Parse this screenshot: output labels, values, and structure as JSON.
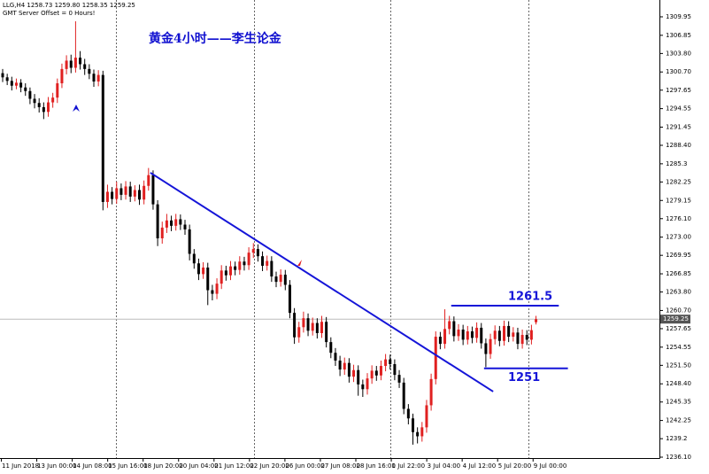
{
  "chart_data": {
    "type": "candlestick",
    "header": "LLG,H4  1258.73 1259.80 1258.35 1259.25",
    "subheader": "GMT Server Offset = 0 Hours!",
    "title": "黄金4小时——李生论金",
    "up_color": "#e02020",
    "down_color": "#000000",
    "open": [
      1300.5,
      1299.8,
      1299.2,
      1298.4,
      1298.9,
      1298.1,
      1297.5,
      1296.2,
      1295.5,
      1294.8,
      1294.0,
      1295.6,
      1296.4,
      1298.8,
      1301.2,
      1302.6,
      1301.4,
      1303.1,
      1302.0,
      1301.2,
      1300.4,
      1299.1,
      1300.2,
      1278.9,
      1280.6,
      1279.4,
      1281.2,
      1280.1,
      1281.5,
      1279.8,
      1280.9,
      1279.3,
      1281.6,
      1283.4,
      1278.5,
      1272.8,
      1274.6,
      1275.8,
      1274.9,
      1276.0,
      1275.1,
      1274.3,
      1270.2,
      1268.6,
      1266.8,
      1267.9,
      1264.1,
      1263.5,
      1265.2,
      1267.4,
      1266.6,
      1268.1,
      1267.5,
      1268.9,
      1268.3,
      1270.4,
      1271.0,
      1269.8,
      1268.2,
      1269.0,
      1266.4,
      1265.5,
      1266.7,
      1265.0,
      1260.3,
      1256.2,
      1257.9,
      1259.4,
      1257.3,
      1258.6,
      1256.9,
      1258.8,
      1255.4,
      1253.6,
      1252.3,
      1250.8,
      1251.9,
      1249.6,
      1250.7,
      1248.3,
      1247.5,
      1249.3,
      1250.6,
      1249.8,
      1251.4,
      1252.5,
      1251.7,
      1249.9,
      1248.6,
      1244.2,
      1242.6,
      1240.3,
      1239.6,
      1241.1,
      1244.8,
      1249.2,
      1256.3,
      1255.1,
      1257.6,
      1258.9,
      1256.4,
      1257.5,
      1255.8,
      1257.2,
      1256.1,
      1257.8,
      1255.2,
      1253.4,
      1255.9,
      1257.3,
      1255.6,
      1258.1,
      1256.3,
      1257.0,
      1255.1,
      1256.6,
      1255.8,
      1258.73
    ],
    "high": [
      1301.2,
      1300.4,
      1299.9,
      1299.6,
      1299.5,
      1298.8,
      1298.1,
      1297.0,
      1296.3,
      1295.6,
      1296.5,
      1297.2,
      1299.6,
      1302.1,
      1303.5,
      1303.6,
      1309.2,
      1304.2,
      1302.9,
      1302.0,
      1301.1,
      1301.0,
      1300.9,
      1281.8,
      1281.4,
      1282.3,
      1282.0,
      1282.4,
      1282.3,
      1281.7,
      1281.8,
      1282.5,
      1284.6,
      1284.2,
      1279.2,
      1275.6,
      1276.9,
      1276.6,
      1276.9,
      1276.8,
      1275.9,
      1275.1,
      1271.0,
      1269.4,
      1268.8,
      1268.7,
      1265.0,
      1266.1,
      1268.3,
      1268.2,
      1269.0,
      1268.9,
      1269.8,
      1269.7,
      1271.3,
      1272.0,
      1271.8,
      1270.6,
      1269.9,
      1269.8,
      1267.2,
      1267.6,
      1267.5,
      1265.8,
      1261.1,
      1258.8,
      1260.5,
      1260.2,
      1259.5,
      1259.4,
      1259.8,
      1259.6,
      1256.2,
      1254.4,
      1253.1,
      1252.8,
      1252.7,
      1251.6,
      1251.5,
      1249.1,
      1250.2,
      1251.5,
      1251.4,
      1252.3,
      1253.4,
      1253.3,
      1252.5,
      1250.7,
      1249.4,
      1245.0,
      1243.4,
      1241.1,
      1242.0,
      1245.7,
      1250.1,
      1257.2,
      1257.1,
      1260.9,
      1259.8,
      1259.7,
      1258.4,
      1258.3,
      1258.1,
      1258.0,
      1258.7,
      1258.6,
      1256.0,
      1256.8,
      1258.2,
      1258.1,
      1259.0,
      1258.9,
      1257.9,
      1257.8,
      1257.5,
      1257.4,
      1258.3,
      1259.8
    ],
    "low": [
      1299.0,
      1298.5,
      1297.6,
      1297.8,
      1297.3,
      1296.7,
      1295.3,
      1294.6,
      1293.9,
      1292.8,
      1293.2,
      1294.7,
      1295.5,
      1298.0,
      1300.3,
      1300.5,
      1300.6,
      1301.1,
      1300.2,
      1299.5,
      1298.2,
      1298.3,
      1277.5,
      1277.9,
      1278.5,
      1278.6,
      1279.2,
      1279.3,
      1278.9,
      1279.0,
      1278.4,
      1278.5,
      1280.8,
      1277.6,
      1271.5,
      1271.9,
      1273.7,
      1274.0,
      1274.1,
      1274.2,
      1273.4,
      1269.1,
      1267.7,
      1265.8,
      1266.0,
      1261.6,
      1262.4,
      1262.6,
      1264.3,
      1265.7,
      1265.8,
      1266.6,
      1266.7,
      1267.4,
      1267.5,
      1269.5,
      1268.9,
      1267.3,
      1267.4,
      1265.5,
      1264.6,
      1264.7,
      1264.1,
      1259.4,
      1255.1,
      1255.3,
      1257.0,
      1256.4,
      1256.5,
      1256.0,
      1256.1,
      1254.5,
      1252.7,
      1251.4,
      1249.7,
      1249.9,
      1248.6,
      1248.7,
      1246.4,
      1246.2,
      1246.6,
      1248.4,
      1248.9,
      1249.0,
      1250.5,
      1250.8,
      1249.0,
      1247.7,
      1243.3,
      1241.6,
      1238.2,
      1238.4,
      1238.7,
      1240.2,
      1243.9,
      1248.3,
      1254.2,
      1254.3,
      1256.7,
      1255.5,
      1255.6,
      1254.9,
      1255.0,
      1255.2,
      1255.3,
      1254.3,
      1251.2,
      1252.6,
      1255.0,
      1254.7,
      1254.8,
      1255.4,
      1255.5,
      1254.2,
      1254.3,
      1254.9,
      1255.0,
      1258.35
    ],
    "close": [
      1299.8,
      1299.2,
      1298.4,
      1298.9,
      1298.1,
      1297.5,
      1296.2,
      1295.5,
      1294.8,
      1294.0,
      1295.6,
      1296.4,
      1298.8,
      1301.2,
      1302.6,
      1301.4,
      1303.1,
      1302.0,
      1301.2,
      1300.4,
      1299.1,
      1300.2,
      1278.9,
      1280.6,
      1279.4,
      1281.2,
      1280.1,
      1281.5,
      1279.8,
      1280.9,
      1279.3,
      1281.6,
      1283.4,
      1278.5,
      1272.8,
      1274.6,
      1275.8,
      1274.9,
      1276.0,
      1275.1,
      1274.3,
      1270.2,
      1268.6,
      1266.8,
      1267.9,
      1264.1,
      1263.5,
      1265.2,
      1267.4,
      1266.6,
      1268.1,
      1267.5,
      1268.9,
      1268.3,
      1270.4,
      1271.0,
      1269.8,
      1268.2,
      1269.0,
      1266.4,
      1265.5,
      1266.7,
      1265.0,
      1260.3,
      1256.2,
      1257.9,
      1259.4,
      1257.3,
      1258.6,
      1256.9,
      1258.8,
      1255.4,
      1253.6,
      1252.3,
      1250.8,
      1251.9,
      1249.6,
      1250.7,
      1248.3,
      1247.5,
      1249.3,
      1250.6,
      1249.8,
      1251.4,
      1252.5,
      1251.7,
      1249.9,
      1248.6,
      1244.2,
      1242.6,
      1240.3,
      1239.6,
      1241.1,
      1244.8,
      1249.2,
      1256.3,
      1255.1,
      1257.6,
      1258.9,
      1256.4,
      1257.5,
      1255.8,
      1257.2,
      1256.1,
      1257.8,
      1255.2,
      1253.4,
      1255.9,
      1257.3,
      1255.6,
      1258.1,
      1256.3,
      1257.0,
      1255.1,
      1256.6,
      1255.8,
      1257.4,
      1259.25
    ],
    "xtick_labels": [
      "11 Jun 2018",
      "13 Jun 00:00",
      "14 Jun 08:00",
      "15 Jun 16:00",
      "18 Jun 20:00",
      "20 Jun 04:00",
      "21 Jun 12:00",
      "22 Jun 20:00",
      "26 Jun 00:00",
      "27 Jun 08:00",
      "28 Jun 16:00",
      "1 Jul 22:00",
      "3 Jul 04:00",
      "4 Jul 12:00",
      "5 Jul 20:00",
      "9 Jul 00:00"
    ],
    "ylim": [
      1235.95,
      1312.77
    ],
    "yticks": [
      1309.95,
      1306.85,
      {
        "value": 1303.8,
        "label": "1303.80"
      },
      {
        "value": 1300.7,
        "label": "1300.70"
      },
      1297.65,
      1294.55,
      1291.45,
      {
        "value": 1288.4,
        "label": "1288.40"
      },
      1285.3,
      1282.25,
      1279.15,
      {
        "value": 1276.1,
        "label": "1276.10"
      },
      {
        "value": 1273,
        "label": "1273.00"
      },
      1269.95,
      1266.85,
      {
        "value": 1263.8,
        "label": "1263.80"
      },
      {
        "value": 1260.7,
        "label": "1260.70"
      },
      1257.65,
      1254.55,
      {
        "value": 1251.5,
        "label": "1251.50"
      },
      {
        "value": 1248.4,
        "label": "1248.40"
      },
      1245.35,
      1242.25,
      1239.2,
      {
        "value": 1236.1,
        "label": "1236.10"
      }
    ],
    "last_price": 1259.25,
    "trendline": [
      1283.8,
      1247.1
    ],
    "levels": [
      1261.5,
      1251
    ]
  }
}
